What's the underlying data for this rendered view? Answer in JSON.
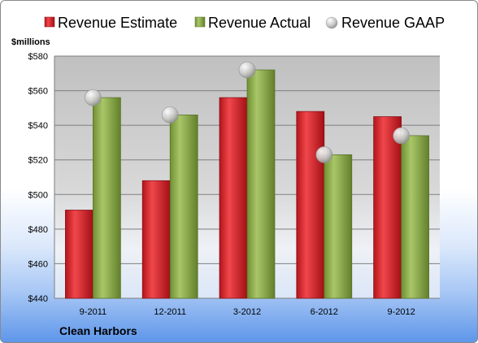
{
  "company": "Clean Harbors",
  "chart_data": {
    "type": "bar",
    "ylabel": "$millions",
    "ylim": [
      440,
      580
    ],
    "y_ticks": [
      "$440",
      "$460",
      "$480",
      "$500",
      "$520",
      "$540",
      "$560",
      "$580"
    ],
    "y_tick_values": [
      440,
      460,
      480,
      500,
      520,
      540,
      560,
      580
    ],
    "categories": [
      "9-2011",
      "12-2011",
      "3-2012",
      "6-2012",
      "9-2012"
    ],
    "series": [
      {
        "name": "Revenue Estimate",
        "mark": "bar",
        "color": "#e21e26",
        "values": [
          491,
          508,
          556,
          548,
          545
        ]
      },
      {
        "name": "Revenue Actual",
        "mark": "bar",
        "color": "#92b34e",
        "values": [
          556,
          546,
          572,
          523,
          534
        ]
      },
      {
        "name": "Revenue GAAP",
        "mark": "point",
        "color": "#c8c8c8",
        "values": [
          556,
          546,
          572,
          523,
          534
        ]
      }
    ],
    "grid": true,
    "legend": "top"
  }
}
